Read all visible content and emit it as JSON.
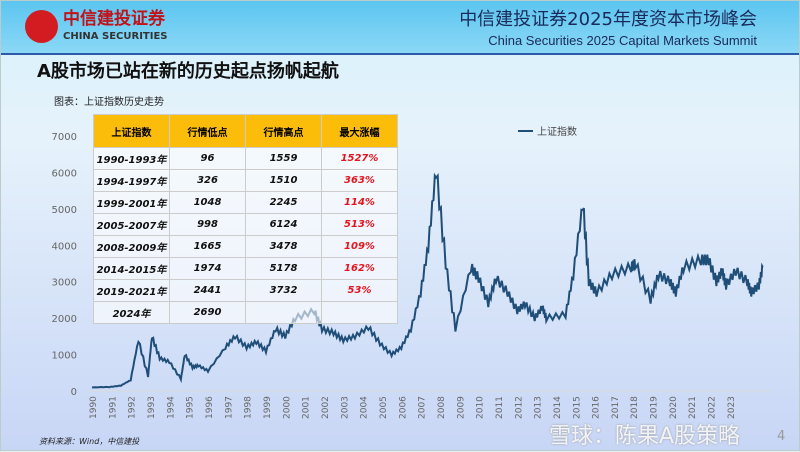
{
  "header": {
    "logo_cn": "中信建投证券",
    "logo_en": "CHINA SECURITIES",
    "title_cn": "中信建投证券2025年度资本市场峰会",
    "title_en": "China Securities 2025 Capital Markets Summit"
  },
  "slide": {
    "title": "A股市场已站在新的历史起点扬帆起航",
    "chart_caption": "图表：上证指数历史走势",
    "source": "资料来源：Wind，中信建投",
    "page": "4",
    "watermark": "雪球：陈果A股策略"
  },
  "table": {
    "headers": [
      "上证指数",
      "行情低点",
      "行情高点",
      "最大涨幅"
    ],
    "rows": [
      [
        "1990-1993年",
        "96",
        "1559",
        "1527%"
      ],
      [
        "1994-1997年",
        "326",
        "1510",
        "363%"
      ],
      [
        "1999-2001年",
        "1048",
        "2245",
        "114%"
      ],
      [
        "2005-2007年",
        "998",
        "6124",
        "513%"
      ],
      [
        "2008-2009年",
        "1665",
        "3478",
        "109%"
      ],
      [
        "2014-2015年",
        "1974",
        "5178",
        "162%"
      ],
      [
        "2019-2021年",
        "2441",
        "3732",
        "53%"
      ],
      [
        "2024年",
        "2690",
        "",
        ""
      ]
    ]
  },
  "chart_data": {
    "type": "line",
    "legend": "上证指数",
    "legend_position": "top-right",
    "ylim": [
      0,
      7000
    ],
    "yticks": [
      0,
      1000,
      2000,
      3000,
      4000,
      5000,
      6000,
      7000
    ],
    "xticks": [
      "1990",
      "1991",
      "1992",
      "1993",
      "1994",
      "1995",
      "1996",
      "1997",
      "1998",
      "1999",
      "2000",
      "2001",
      "2002",
      "2003",
      "2004",
      "2005",
      "2006",
      "2007",
      "2008",
      "2009",
      "2010",
      "2011",
      "2012",
      "2013",
      "2014",
      "2015",
      "2016",
      "2017",
      "2018",
      "2019",
      "2020",
      "2021",
      "2022",
      "2023"
    ],
    "line_color": "#1f4e79",
    "series": [
      {
        "name": "上证指数",
        "points": [
          [
            1990.0,
            100
          ],
          [
            1990.9,
            110
          ],
          [
            1991.5,
            150
          ],
          [
            1992.0,
            300
          ],
          [
            1992.4,
            1400
          ],
          [
            1992.9,
            400
          ],
          [
            1993.1,
            1500
          ],
          [
            1993.5,
            900
          ],
          [
            1994.0,
            800
          ],
          [
            1994.6,
            330
          ],
          [
            1994.8,
            1000
          ],
          [
            1995.2,
            650
          ],
          [
            1995.5,
            700
          ],
          [
            1996.0,
            550
          ],
          [
            1996.9,
            1200
          ],
          [
            1997.4,
            1500
          ],
          [
            1998.0,
            1200
          ],
          [
            1998.5,
            1350
          ],
          [
            1999.0,
            1100
          ],
          [
            1999.5,
            1700
          ],
          [
            2000.0,
            1500
          ],
          [
            2000.5,
            2000
          ],
          [
            2001.5,
            2200
          ],
          [
            2001.9,
            1700
          ],
          [
            2002.5,
            1600
          ],
          [
            2003.0,
            1400
          ],
          [
            2003.6,
            1500
          ],
          [
            2004.3,
            1750
          ],
          [
            2004.9,
            1300
          ],
          [
            2005.5,
            1000
          ],
          [
            2006.0,
            1200
          ],
          [
            2006.5,
            1700
          ],
          [
            2007.0,
            2700
          ],
          [
            2007.4,
            4000
          ],
          [
            2007.8,
            6100
          ],
          [
            2008.3,
            3500
          ],
          [
            2008.8,
            1700
          ],
          [
            2009.6,
            3400
          ],
          [
            2010.0,
            3100
          ],
          [
            2010.5,
            2400
          ],
          [
            2010.9,
            3100
          ],
          [
            2011.5,
            2700
          ],
          [
            2012.0,
            2200
          ],
          [
            2012.4,
            2400
          ],
          [
            2012.9,
            2000
          ],
          [
            2013.3,
            2300
          ],
          [
            2013.5,
            2000
          ],
          [
            2014.5,
            2100
          ],
          [
            2014.9,
            3200
          ],
          [
            2015.4,
            5178
          ],
          [
            2015.7,
            3000
          ],
          [
            2016.1,
            2700
          ],
          [
            2016.9,
            3200
          ],
          [
            2017.9,
            3400
          ],
          [
            2018.1,
            3500
          ],
          [
            2018.9,
            2500
          ],
          [
            2019.3,
            3200
          ],
          [
            2019.9,
            3000
          ],
          [
            2020.2,
            2700
          ],
          [
            2020.6,
            3400
          ],
          [
            2021.5,
            3600
          ],
          [
            2021.9,
            3600
          ],
          [
            2022.3,
            3000
          ],
          [
            2022.6,
            3300
          ],
          [
            2022.8,
            2900
          ],
          [
            2023.3,
            3300
          ],
          [
            2023.9,
            3000
          ],
          [
            2024.1,
            2700
          ],
          [
            2024.5,
            2900
          ],
          [
            2024.7,
            3400
          ]
        ]
      }
    ]
  }
}
